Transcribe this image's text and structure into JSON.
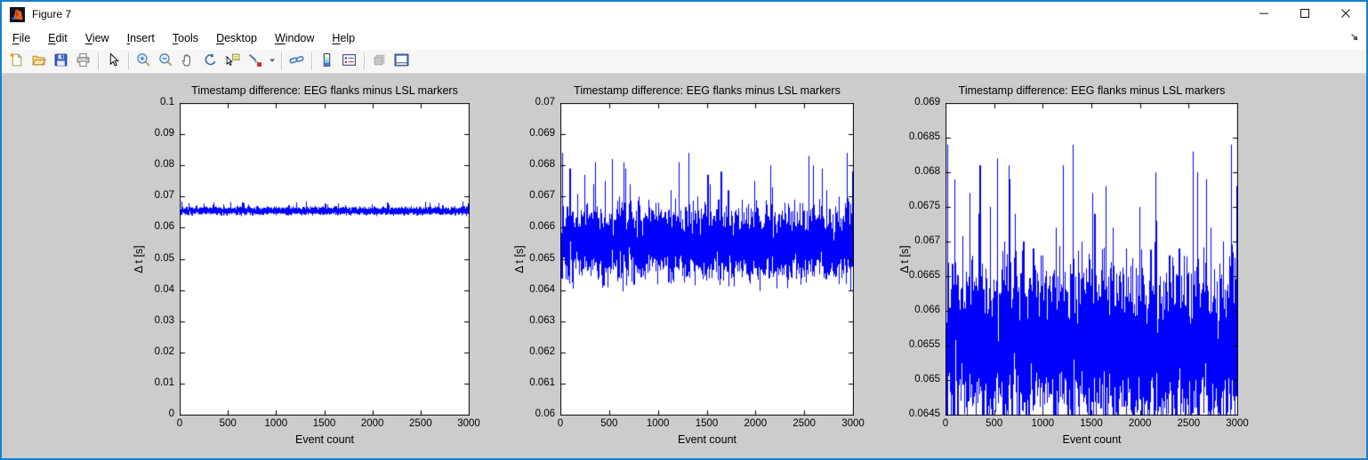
{
  "window": {
    "title": "Figure 7",
    "icon": "matlab-logo",
    "controls": [
      {
        "name": "minimize"
      },
      {
        "name": "maximize"
      },
      {
        "name": "close"
      }
    ]
  },
  "menu": {
    "items": [
      {
        "label": "File"
      },
      {
        "label": "Edit"
      },
      {
        "label": "View"
      },
      {
        "label": "Insert"
      },
      {
        "label": "Tools"
      },
      {
        "label": "Desktop"
      },
      {
        "label": "Window"
      },
      {
        "label": "Help"
      }
    ],
    "dock_button": "dock-figure"
  },
  "toolbar": {
    "buttons": [
      {
        "type": "button",
        "name": "new-figure"
      },
      {
        "type": "button",
        "name": "open-file"
      },
      {
        "type": "button",
        "name": "save-figure"
      },
      {
        "type": "button",
        "name": "print-figure"
      },
      {
        "type": "separator"
      },
      {
        "type": "button",
        "name": "edit-plot"
      },
      {
        "type": "separator"
      },
      {
        "type": "button",
        "name": "zoom-in"
      },
      {
        "type": "button",
        "name": "zoom-out"
      },
      {
        "type": "button",
        "name": "pan"
      },
      {
        "type": "button",
        "name": "rotate-3d"
      },
      {
        "type": "button",
        "name": "data-cursor"
      },
      {
        "type": "button",
        "name": "brush-data"
      },
      {
        "type": "button",
        "name": "brush-dropdown",
        "narrow": true
      },
      {
        "type": "separator"
      },
      {
        "type": "button",
        "name": "link-plot"
      },
      {
        "type": "separator"
      },
      {
        "type": "button",
        "name": "insert-colorbar"
      },
      {
        "type": "button",
        "name": "insert-legend"
      },
      {
        "type": "separator"
      },
      {
        "type": "button",
        "name": "hide-plot-tools",
        "disabled": true
      },
      {
        "type": "button",
        "name": "show-plot-tools-dock"
      }
    ]
  },
  "colors": {
    "accent_border": "#1581d2",
    "figure_bg": "#cccccc",
    "plot_bg": "#ffffff",
    "line": "#0000ff",
    "axis": "#000000"
  },
  "signal": {
    "description": "Same ~3000-sample noisy timestamp-difference series shown at three y-axis zoom levels",
    "n_points": 3000,
    "baseline": 0.0655,
    "noise_band": [
      0.0647,
      0.0664
    ],
    "spikes": [
      [
        18,
        0.0684
      ],
      [
        95,
        0.0679
      ],
      [
        245,
        0.0677
      ],
      [
        340,
        0.0674
      ],
      [
        352,
        0.0681
      ],
      [
        455,
        0.0675
      ],
      [
        527,
        0.0682
      ],
      [
        600,
        0.067
      ],
      [
        650,
        0.0681
      ],
      [
        662,
        0.0679
      ],
      [
        710,
        0.0674
      ],
      [
        800,
        0.067
      ],
      [
        900,
        0.0669
      ],
      [
        1000,
        0.0668
      ],
      [
        1130,
        0.0672
      ],
      [
        1209,
        0.0681
      ],
      [
        1309,
        0.0684
      ],
      [
        1400,
        0.067
      ],
      [
        1509,
        0.0677
      ],
      [
        1532,
        0.0674
      ],
      [
        1645,
        0.0678
      ],
      [
        1718,
        0.0672
      ],
      [
        1860,
        0.0669
      ],
      [
        1991,
        0.0675
      ],
      [
        2155,
        0.068
      ],
      [
        2167,
        0.0673
      ],
      [
        2300,
        0.0668
      ],
      [
        2400,
        0.0669
      ],
      [
        2545,
        0.0683
      ],
      [
        2591,
        0.068
      ],
      [
        2682,
        0.0679
      ],
      [
        2727,
        0.0672
      ],
      [
        2850,
        0.067
      ],
      [
        2936,
        0.0684
      ],
      [
        2990,
        0.0678
      ]
    ]
  },
  "chart_data": [
    {
      "type": "line",
      "title": "Timestamp difference: EEG flanks minus LSL markers",
      "xlabel": "Event count",
      "ylabel": "Δ t [s]",
      "xlim": [
        0,
        3000
      ],
      "ylim": [
        0,
        0.1
      ],
      "xticks": [
        0,
        500,
        1000,
        1500,
        2000,
        2500,
        3000
      ],
      "yticks": [
        0,
        0.01,
        0.02,
        0.03,
        0.04,
        0.05,
        0.06,
        0.07,
        0.08,
        0.09,
        0.1
      ],
      "grid": false,
      "legend": null,
      "line_color": "#0000ff"
    },
    {
      "type": "line",
      "title": "Timestamp difference: EEG flanks minus LSL markers",
      "xlabel": "Event count",
      "ylabel": "Δ t [s]",
      "xlim": [
        0,
        3000
      ],
      "ylim": [
        0.06,
        0.07
      ],
      "xticks": [
        0,
        500,
        1000,
        1500,
        2000,
        2500,
        3000
      ],
      "yticks": [
        0.06,
        0.061,
        0.062,
        0.063,
        0.064,
        0.065,
        0.066,
        0.067,
        0.068,
        0.069,
        0.07
      ],
      "grid": false,
      "legend": null,
      "line_color": "#0000ff"
    },
    {
      "type": "line",
      "title": "Timestamp difference: EEG flanks minus LSL markers",
      "xlabel": "Event count",
      "ylabel": "Δ t [s]",
      "xlim": [
        0,
        3000
      ],
      "ylim": [
        0.0645,
        0.069
      ],
      "xticks": [
        0,
        500,
        1000,
        1500,
        2000,
        2500,
        3000
      ],
      "yticks": [
        0.0645,
        0.065,
        0.0655,
        0.066,
        0.0665,
        0.067,
        0.0675,
        0.068,
        0.0685,
        0.069
      ],
      "grid": false,
      "legend": null,
      "line_color": "#0000ff"
    }
  ]
}
